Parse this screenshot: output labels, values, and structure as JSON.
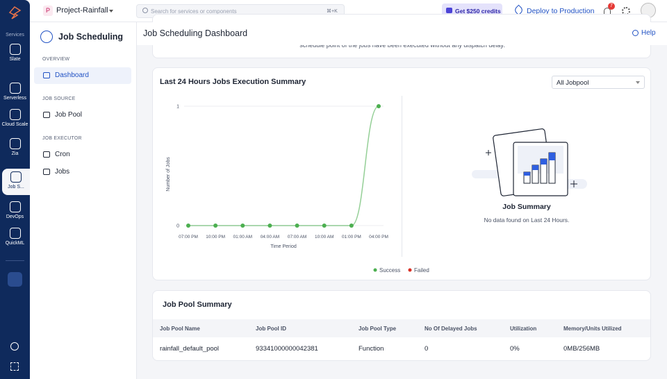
{
  "topbar": {
    "project_initial": "P",
    "project": "Project-Rainfall",
    "search_placeholder": "Search for services or components",
    "shortcut": "⌘+K",
    "credits": "Get $250 credits",
    "deploy": "Deploy to Production",
    "notifications": 7
  },
  "rail": {
    "heading": "Services",
    "items": [
      "Slate",
      "Serverless",
      "Cloud Scale",
      "Zia",
      "Job S...",
      "DevOps",
      "QuickML"
    ]
  },
  "sidebar": {
    "title": "Job Scheduling",
    "sections": [
      {
        "heading": "OVERVIEW",
        "items": [
          "Dashboard"
        ]
      },
      {
        "heading": "JOB SOURCE",
        "items": [
          "Job Pool"
        ]
      },
      {
        "heading": "JOB EXECUTOR",
        "items": [
          "Cron",
          "Jobs"
        ]
      }
    ]
  },
  "header": {
    "title": "Job Scheduling Dashboard",
    "help": "Help"
  },
  "truncated_text": "schedule point of the jobs have been executed without any dispatch delay.",
  "summary_card": {
    "title": "Last 24 Hours Jobs Execution Summary",
    "dropdown": "All Jobpool",
    "empty_title": "Job Summary",
    "empty_text": "No data found on Last 24 Hours."
  },
  "chart_data": {
    "type": "line",
    "xlabel": "Time Period",
    "ylabel": "Number of Jobs",
    "categories": [
      "07:00 PM",
      "10:00 PM",
      "01:00 AM",
      "04:00 AM",
      "07:00 AM",
      "10:00 AM",
      "01:00 PM",
      "04:00 PM"
    ],
    "series": [
      {
        "name": "Success",
        "color": "#4caf50",
        "values": [
          0,
          0,
          0,
          0,
          0,
          0,
          0,
          1
        ]
      },
      {
        "name": "Failed",
        "color": "#d93025",
        "values": [
          null,
          null,
          null,
          null,
          null,
          null,
          null,
          null
        ]
      }
    ],
    "ylim": [
      0,
      1
    ],
    "yticks": [
      0,
      1
    ],
    "grid": true
  },
  "table": {
    "title": "Job Pool Summary",
    "columns": [
      "Job Pool Name",
      "Job Pool ID",
      "Job Pool Type",
      "No Of Delayed Jobs",
      "Utilization",
      "Memory/Units Utilized"
    ],
    "rows": [
      [
        "rainfall_default_pool",
        "93341000000042381",
        "Function",
        "0",
        "0%",
        "0MB/256MB"
      ]
    ]
  }
}
